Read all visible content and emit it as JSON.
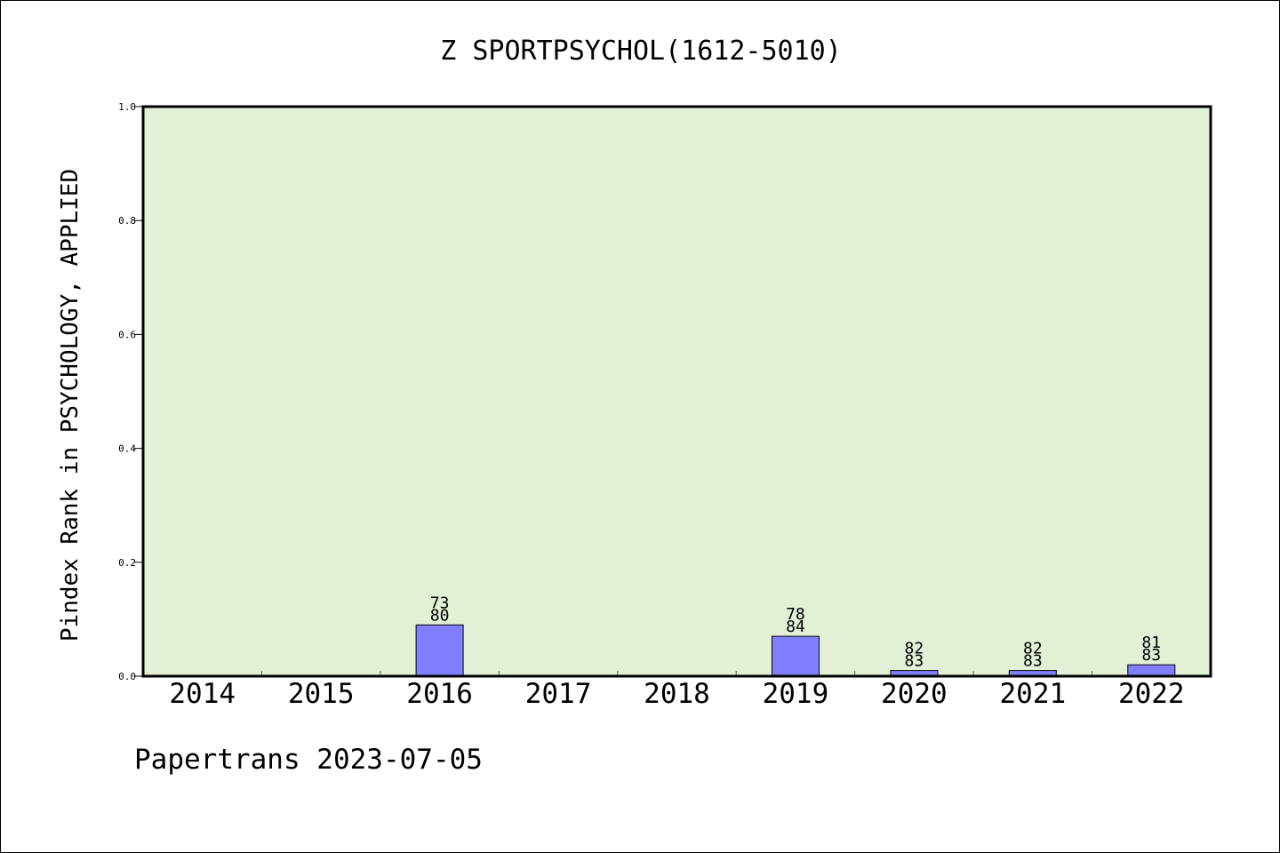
{
  "chart_data": {
    "type": "bar",
    "title": "Z SPORTPSYCHOL(1612-5010)",
    "ylabel": "Pindex Rank in PSYCHOLOGY, APPLIED",
    "xlabel": "",
    "categories": [
      "2014",
      "2015",
      "2016",
      "2017",
      "2018",
      "2019",
      "2020",
      "2021",
      "2022"
    ],
    "values": [
      0,
      0,
      0.09,
      0,
      0,
      0.07,
      0.01,
      0.01,
      0.02
    ],
    "labels_top": [
      "",
      "",
      "73",
      "",
      "",
      "78",
      "82",
      "82",
      "81"
    ],
    "labels_bottom": [
      "",
      "",
      "80",
      "",
      "",
      "84",
      "83",
      "83",
      "83"
    ],
    "ylim": [
      0,
      1.0
    ],
    "yticks": [
      "0.0",
      "0.2",
      "0.4",
      "0.6",
      "0.8",
      "1.0"
    ],
    "grid": false,
    "colors": {
      "plot_bg": "#e2f0d6",
      "bar": "#8080ff",
      "bar_edge": "#000000"
    }
  },
  "footer": {
    "text": "Papertrans 2023-07-05"
  }
}
